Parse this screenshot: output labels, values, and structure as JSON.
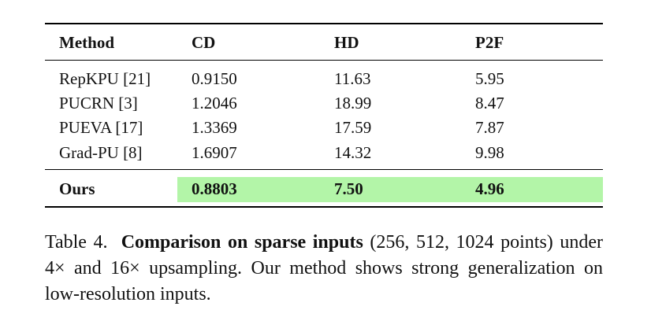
{
  "table": {
    "header": [
      "Method",
      "CD",
      "HD",
      "P2F"
    ],
    "rows": [
      [
        "RepKPU [21]",
        "0.9150",
        "11.63",
        "5.95"
      ],
      [
        "PUCRN [3]",
        "1.2046",
        "18.99",
        "8.47"
      ],
      [
        "PUEVA [17]",
        "1.3369",
        "17.59",
        "7.87"
      ],
      [
        "Grad-PU [8]",
        "1.6907",
        "14.32",
        "9.98"
      ]
    ],
    "highlight_row": [
      "Ours",
      "0.8803",
      "7.50",
      "4.96"
    ]
  },
  "caption": {
    "label": "Table 4.",
    "bold": "Comparison on sparse inputs",
    "text": "(256, 512, 1024 points) under 4× and 16× upsampling. Our method shows strong generalization on low-resolution inputs."
  }
}
